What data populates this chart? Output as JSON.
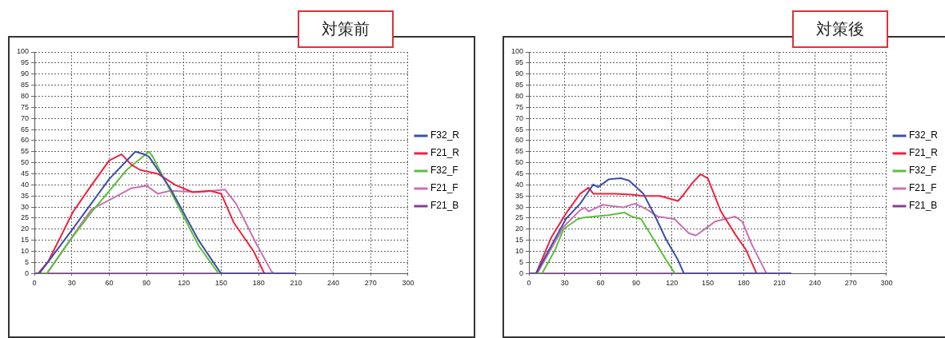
{
  "chart_data": [
    {
      "type": "line",
      "title": "対策前",
      "xlim": [
        0,
        300
      ],
      "ylim": [
        0,
        100
      ],
      "xticks": [
        0,
        30,
        60,
        90,
        120,
        150,
        180,
        210,
        240,
        270,
        300
      ],
      "yticks": [
        0,
        5,
        10,
        15,
        20,
        25,
        30,
        35,
        40,
        45,
        50,
        55,
        60,
        65,
        70,
        75,
        80,
        85,
        90,
        95,
        100
      ],
      "grid": true,
      "legend": "right",
      "marker": "none",
      "series": [
        {
          "name": "F32_R",
          "color": "#3a4fa8",
          "x": [
            0,
            4,
            30,
            60,
            81,
            88,
            92,
            109,
            132,
            149,
            151,
            210
          ],
          "values": [
            0,
            0,
            19.5,
            42.6,
            55,
            53.8,
            52.7,
            38.5,
            14.8,
            0.6,
            0,
            0
          ]
        },
        {
          "name": "F21_R",
          "color": "#f0203c",
          "x": [
            0,
            3,
            11,
            31,
            46,
            60,
            70,
            78,
            85,
            99,
            113,
            127,
            141,
            150,
            160,
            176,
            184,
            185
          ],
          "values": [
            0,
            0,
            5.3,
            27.8,
            40,
            51,
            53.8,
            49,
            46.7,
            45,
            40,
            36.7,
            37.3,
            36,
            23,
            10,
            0.6,
            0
          ]
        },
        {
          "name": "F32_F",
          "color": "#5bbf3a",
          "x": [
            0,
            10,
            30,
            46,
            62,
            74,
            92,
            95,
            132,
            147,
            148
          ],
          "values": [
            0,
            0,
            16,
            27.8,
            38.5,
            46.7,
            55,
            52.7,
            12.4,
            0.6,
            0
          ]
        },
        {
          "name": "F21_F",
          "color": "#c86fb4",
          "x": [
            0,
            10,
            37,
            46,
            62,
            78,
            90,
            99,
            109,
            132,
            153,
            162,
            178,
            190,
            192
          ],
          "values": [
            0,
            0,
            22,
            29,
            33.7,
            38.5,
            39.6,
            36,
            37.3,
            36.7,
            37.9,
            31.4,
            13.6,
            1.2,
            0
          ]
        },
        {
          "name": "F21_B",
          "color": "#8a3a9a",
          "x": [
            0,
            210
          ],
          "values": [
            0,
            0
          ]
        }
      ]
    },
    {
      "type": "line",
      "title": "対策後",
      "xlim": [
        0,
        300
      ],
      "ylim": [
        0,
        100
      ],
      "xticks": [
        0,
        30,
        60,
        90,
        120,
        150,
        180,
        210,
        240,
        270,
        300
      ],
      "yticks": [
        0,
        5,
        10,
        15,
        20,
        25,
        30,
        35,
        40,
        45,
        50,
        55,
        60,
        65,
        70,
        75,
        80,
        85,
        90,
        95,
        100
      ],
      "grid": true,
      "legend": "right",
      "marker": "none",
      "series": [
        {
          "name": "F32_R",
          "color": "#3a4fa8",
          "x": [
            0,
            6,
            31,
            43,
            54,
            58,
            67,
            77,
            84,
            91,
            96,
            106,
            115,
            125,
            130,
            220
          ],
          "values": [
            0,
            0,
            24.6,
            31.5,
            40.2,
            39,
            42.5,
            43,
            41.9,
            38.5,
            36,
            25.7,
            15.4,
            6.1,
            0,
            0
          ]
        },
        {
          "name": "F21_R",
          "color": "#f0203c",
          "x": [
            0,
            6,
            19,
            31,
            43,
            50,
            54,
            72,
            86,
            96,
            110,
            125,
            128,
            137,
            144,
            150,
            161,
            173,
            182,
            191
          ],
          "values": [
            0,
            0,
            16.5,
            27,
            36,
            38.7,
            36,
            36,
            35.6,
            35,
            35,
            32.7,
            34.4,
            40.8,
            44.8,
            43,
            28,
            17.7,
            10.7,
            0
          ]
        },
        {
          "name": "F32_F",
          "color": "#5bbf3a",
          "x": [
            0,
            11,
            22,
            29,
            41,
            46,
            67,
            80,
            86,
            94,
            106,
            115,
            122,
            123
          ],
          "values": [
            0,
            0,
            10.7,
            20,
            24.6,
            25.2,
            26.3,
            27.5,
            25.7,
            24.6,
            14.2,
            6.1,
            0.3,
            0
          ]
        },
        {
          "name": "F21_F",
          "color": "#c86fb4",
          "x": [
            0,
            7,
            29,
            43,
            47,
            50,
            62,
            79,
            89,
            98,
            108,
            122,
            134,
            140,
            146,
            156,
            173,
            179,
            187,
            199,
            200
          ],
          "values": [
            0,
            0,
            21,
            28.6,
            29.8,
            28,
            31,
            29.8,
            31.5,
            29.2,
            25.7,
            24.6,
            18.2,
            17.1,
            19.4,
            23.4,
            25.7,
            23.4,
            13,
            0.3,
            0
          ]
        },
        {
          "name": "F21_B",
          "color": "#8a3a9a",
          "x": [
            0,
            220
          ],
          "values": [
            0,
            0
          ]
        }
      ]
    }
  ]
}
